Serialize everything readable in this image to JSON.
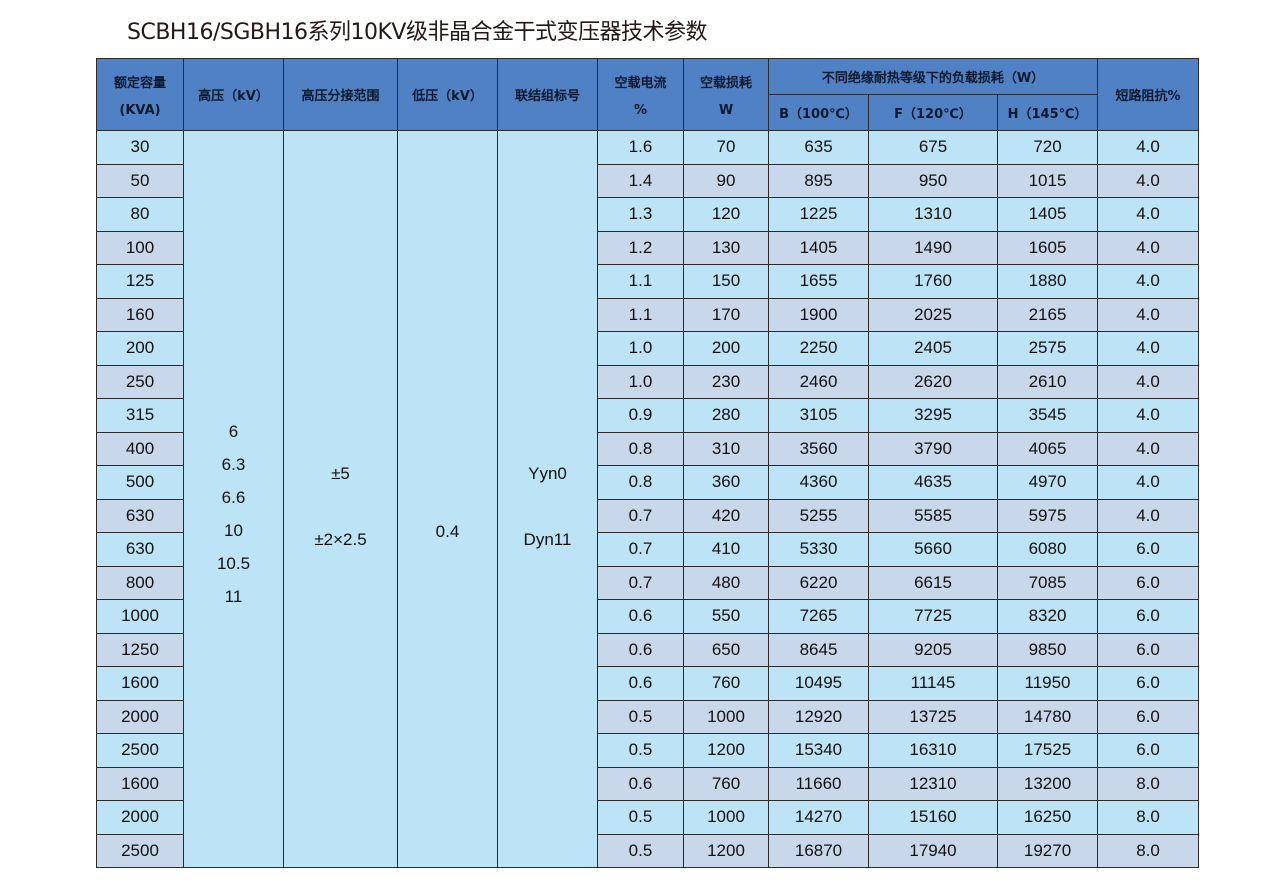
{
  "title": "SCBH16/SGBH16系列10KV级非晶合金干式变压器技术参数",
  "headers": {
    "capacity": [
      "额定容量",
      "(KVA)"
    ],
    "high_voltage": "高压（kV）",
    "tap_range": "高压分接范围",
    "low_voltage": "低压（kV）",
    "vector_group": "联结组标号",
    "no_load_current": [
      "空载电流",
      "%"
    ],
    "no_load_loss": [
      "空载损耗",
      "W"
    ],
    "load_loss_group": "不同绝缘耐热等级下的负载损耗（W）",
    "load_loss_b": "B（100℃）",
    "load_loss_f": "F（120℃）",
    "load_loss_h": "H（145℃）",
    "impedance": "短路阻抗%"
  },
  "merged": {
    "high_voltage": [
      "6",
      "6.3",
      "6.6",
      "10",
      "10.5",
      "11"
    ],
    "tap_range": [
      "±5",
      "±2×2.5"
    ],
    "low_voltage": "0.4",
    "vector_group": [
      "Yyn0",
      "Dyn11"
    ]
  },
  "rows": [
    [
      "30",
      "1.6",
      "70",
      "635",
      "675",
      "720",
      "4.0"
    ],
    [
      "50",
      "1.4",
      "90",
      "895",
      "950",
      "1015",
      "4.0"
    ],
    [
      "80",
      "1.3",
      "120",
      "1225",
      "1310",
      "1405",
      "4.0"
    ],
    [
      "100",
      "1.2",
      "130",
      "1405",
      "1490",
      "1605",
      "4.0"
    ],
    [
      "125",
      "1.1",
      "150",
      "1655",
      "1760",
      "1880",
      "4.0"
    ],
    [
      "160",
      "1.1",
      "170",
      "1900",
      "2025",
      "2165",
      "4.0"
    ],
    [
      "200",
      "1.0",
      "200",
      "2250",
      "2405",
      "2575",
      "4.0"
    ],
    [
      "250",
      "1.0",
      "230",
      "2460",
      "2620",
      "2610",
      "4.0"
    ],
    [
      "315",
      "0.9",
      "280",
      "3105",
      "3295",
      "3545",
      "4.0"
    ],
    [
      "400",
      "0.8",
      "310",
      "3560",
      "3790",
      "4065",
      "4.0"
    ],
    [
      "500",
      "0.8",
      "360",
      "4360",
      "4635",
      "4970",
      "4.0"
    ],
    [
      "630",
      "0.7",
      "420",
      "5255",
      "5585",
      "5975",
      "4.0"
    ],
    [
      "630",
      "0.7",
      "410",
      "5330",
      "5660",
      "6080",
      "6.0"
    ],
    [
      "800",
      "0.7",
      "480",
      "6220",
      "6615",
      "7085",
      "6.0"
    ],
    [
      "1000",
      "0.6",
      "550",
      "7265",
      "7725",
      "8320",
      "6.0"
    ],
    [
      "1250",
      "0.6",
      "650",
      "8645",
      "9205",
      "9850",
      "6.0"
    ],
    [
      "1600",
      "0.6",
      "760",
      "10495",
      "11145",
      "11950",
      "6.0"
    ],
    [
      "2000",
      "0.5",
      "1000",
      "12920",
      "13725",
      "14780",
      "6.0"
    ],
    [
      "2500",
      "0.5",
      "1200",
      "15340",
      "16310",
      "17525",
      "6.0"
    ],
    [
      "1600",
      "0.6",
      "760",
      "11660",
      "12310",
      "13200",
      "8.0"
    ],
    [
      "2000",
      "0.5",
      "1000",
      "14270",
      "15160",
      "16250",
      "8.0"
    ],
    [
      "2500",
      "0.5",
      "1200",
      "16870",
      "17940",
      "19270",
      "8.0"
    ]
  ],
  "colors": {
    "header": "#4f81c4",
    "row_odd": "#bde3f7",
    "row_even": "#c9d7ea"
  }
}
